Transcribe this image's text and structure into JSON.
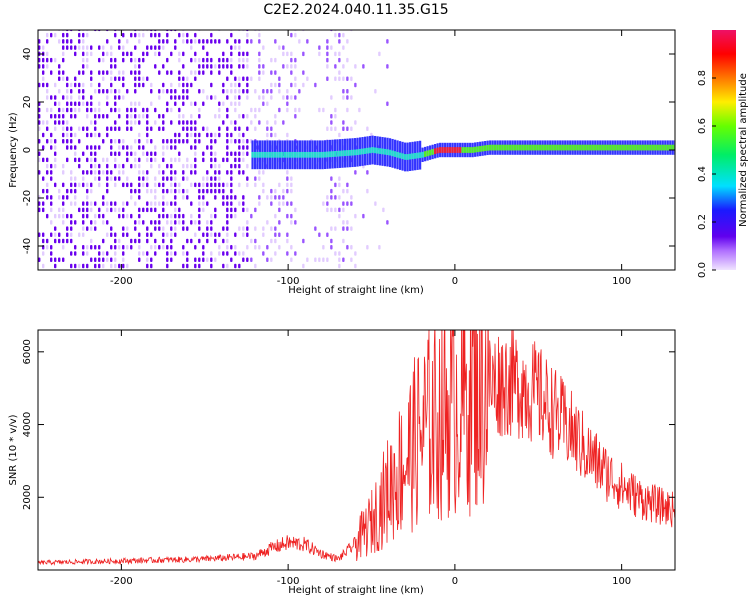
{
  "title": "C2E2.2024.040.11.35.G15",
  "colors": {
    "line": "#ee2222",
    "frame": "#000000",
    "spectrum_low": "#eedcff",
    "spectrum_mid": "#6a00ee",
    "ridge_fill": "#3333ff",
    "ridge_core": "#22ee88",
    "peak": "#ee2233"
  },
  "chart_data": [
    {
      "type": "heatmap",
      "title": "",
      "xlabel": "Height of straight line (km)",
      "ylabel": "Frequency (Hz)",
      "xlim": [
        -250,
        132
      ],
      "ylim": [
        -50,
        50
      ],
      "xticks": [
        -200,
        -100,
        0,
        100
      ],
      "xtick_labels": [
        "-200",
        "-100",
        "0",
        "100"
      ],
      "yticks": [
        -40,
        -20,
        0,
        20,
        40
      ],
      "ytick_labels": [
        "-40",
        "-20",
        "0",
        "20",
        "40"
      ],
      "colorbar": {
        "label": "Normalized spectral amplitude",
        "range": [
          0,
          1
        ],
        "ticks": [
          0.0,
          0.2,
          0.4,
          0.6,
          0.8
        ],
        "tick_labels": [
          "0.0",
          "0.2",
          "0.4",
          "0.6",
          "0.8"
        ],
        "colormap": "rainbow"
      },
      "ridge": {
        "x": [
          -120,
          -100,
          -80,
          -60,
          -50,
          -40,
          -30,
          -20,
          -10,
          0,
          10,
          20,
          40,
          60,
          80,
          100,
          132
        ],
        "y_center": [
          -2,
          -2,
          -2,
          -1,
          0,
          -1,
          -3,
          -2,
          0,
          0,
          0,
          1,
          1,
          1,
          1,
          1,
          1
        ],
        "amplitude": [
          0.3,
          0.35,
          0.3,
          0.35,
          0.45,
          0.45,
          0.4,
          0.45,
          0.95,
          0.95,
          0.55,
          0.5,
          0.55,
          0.6,
          0.65,
          0.6,
          0.6
        ]
      },
      "grid": false
    },
    {
      "type": "line",
      "title": "",
      "xlabel": "Height of straight line (km)",
      "ylabel": "SNR (10 * v/v)",
      "xlim": [
        -250,
        132
      ],
      "ylim": [
        0,
        6600
      ],
      "xticks": [
        -200,
        -100,
        0,
        100
      ],
      "xtick_labels": [
        "-200",
        "-100",
        "0",
        "100"
      ],
      "yticks": [
        2000,
        4000,
        6000
      ],
      "ytick_labels": [
        "2000",
        "4000",
        "6000"
      ],
      "series": [
        {
          "x": [
            -250,
            -200,
            -150,
            -120,
            -110,
            -100,
            -90,
            -80,
            -70,
            -60,
            -50,
            -40,
            -30,
            -20,
            -10,
            0,
            10,
            20,
            30,
            40,
            50,
            60,
            70,
            80,
            90,
            100,
            110,
            120,
            132
          ],
          "y": [
            200,
            250,
            300,
            380,
            600,
            750,
            700,
            450,
            300,
            700,
            1300,
            2200,
            3000,
            3800,
            4200,
            4600,
            4900,
            5100,
            5200,
            5100,
            4800,
            4300,
            3800,
            3200,
            2700,
            2300,
            2000,
            1800,
            1650
          ]
        }
      ],
      "grid": false
    }
  ]
}
